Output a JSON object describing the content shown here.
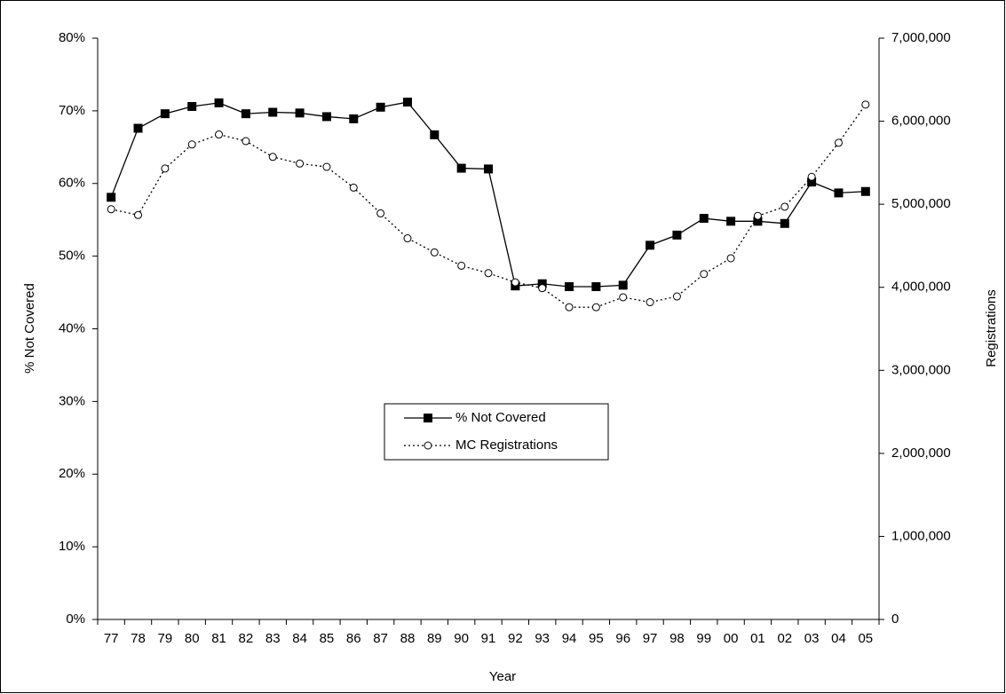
{
  "chart_data": {
    "type": "line",
    "x_label": "Year",
    "y_label": "% Not Covered",
    "y2_label": "Registrations",
    "categories": [
      "77",
      "78",
      "79",
      "80",
      "81",
      "82",
      "83",
      "84",
      "85",
      "86",
      "87",
      "88",
      "89",
      "90",
      "91",
      "92",
      "93",
      "94",
      "95",
      "96",
      "97",
      "98",
      "99",
      "00",
      "01",
      "02",
      "03",
      "04",
      "05"
    ],
    "series": [
      {
        "name": "% Not Covered",
        "color": "#000000",
        "marker": "square",
        "dashed": false,
        "values": [
          58.1,
          67.6,
          69.6,
          70.6,
          71.1,
          69.6,
          69.8,
          69.7,
          69.2,
          68.9,
          70.5,
          71.2,
          66.7,
          62.1,
          62.0,
          45.9,
          46.2,
          45.8,
          45.8,
          46.0,
          51.5,
          52.9,
          55.2,
          54.8,
          54.8,
          54.5,
          60.2,
          58.7,
          58.9
        ]
      },
      {
        "name": "MC Registrations",
        "color": "#000000",
        "marker": "circle",
        "dashed": true,
        "axis": "y2",
        "values": [
          4940000,
          4870000,
          5430000,
          5720000,
          5840000,
          5760000,
          5570000,
          5490000,
          5450000,
          5200000,
          4890000,
          4590000,
          4420000,
          4260000,
          4170000,
          4060000,
          3990000,
          3760000,
          3760000,
          3880000,
          3820000,
          3890000,
          4160000,
          4350000,
          4860000,
          4970000,
          5330000,
          5740000,
          6200000
        ]
      }
    ],
    "ylim": [
      0,
      80
    ],
    "yticks": [
      {
        "value": 0,
        "label": "0%"
      },
      {
        "value": 10,
        "label": "10%"
      },
      {
        "value": 20,
        "label": "20%"
      },
      {
        "value": 30,
        "label": "30%"
      },
      {
        "value": 40,
        "label": "40%"
      },
      {
        "value": 50,
        "label": "50%"
      },
      {
        "value": 60,
        "label": "60%"
      },
      {
        "value": 70,
        "label": "70%"
      },
      {
        "value": 80,
        "label": "80%"
      }
    ],
    "y2lim": [
      0,
      7000000
    ],
    "y2ticks": [
      0,
      {
        "value": 1000000,
        "label": "1,000,000"
      },
      {
        "value": 2000000,
        "label": "2,000,000"
      },
      {
        "value": 3000000,
        "label": "3,000,000"
      },
      {
        "value": 4000000,
        "label": "4,000,000"
      },
      {
        "value": 5000000,
        "label": "5,000,000"
      },
      {
        "value": 6000000,
        "label": "6,000,000"
      },
      {
        "value": 7000000,
        "label": "7,000,000"
      }
    ],
    "legend": "center"
  }
}
